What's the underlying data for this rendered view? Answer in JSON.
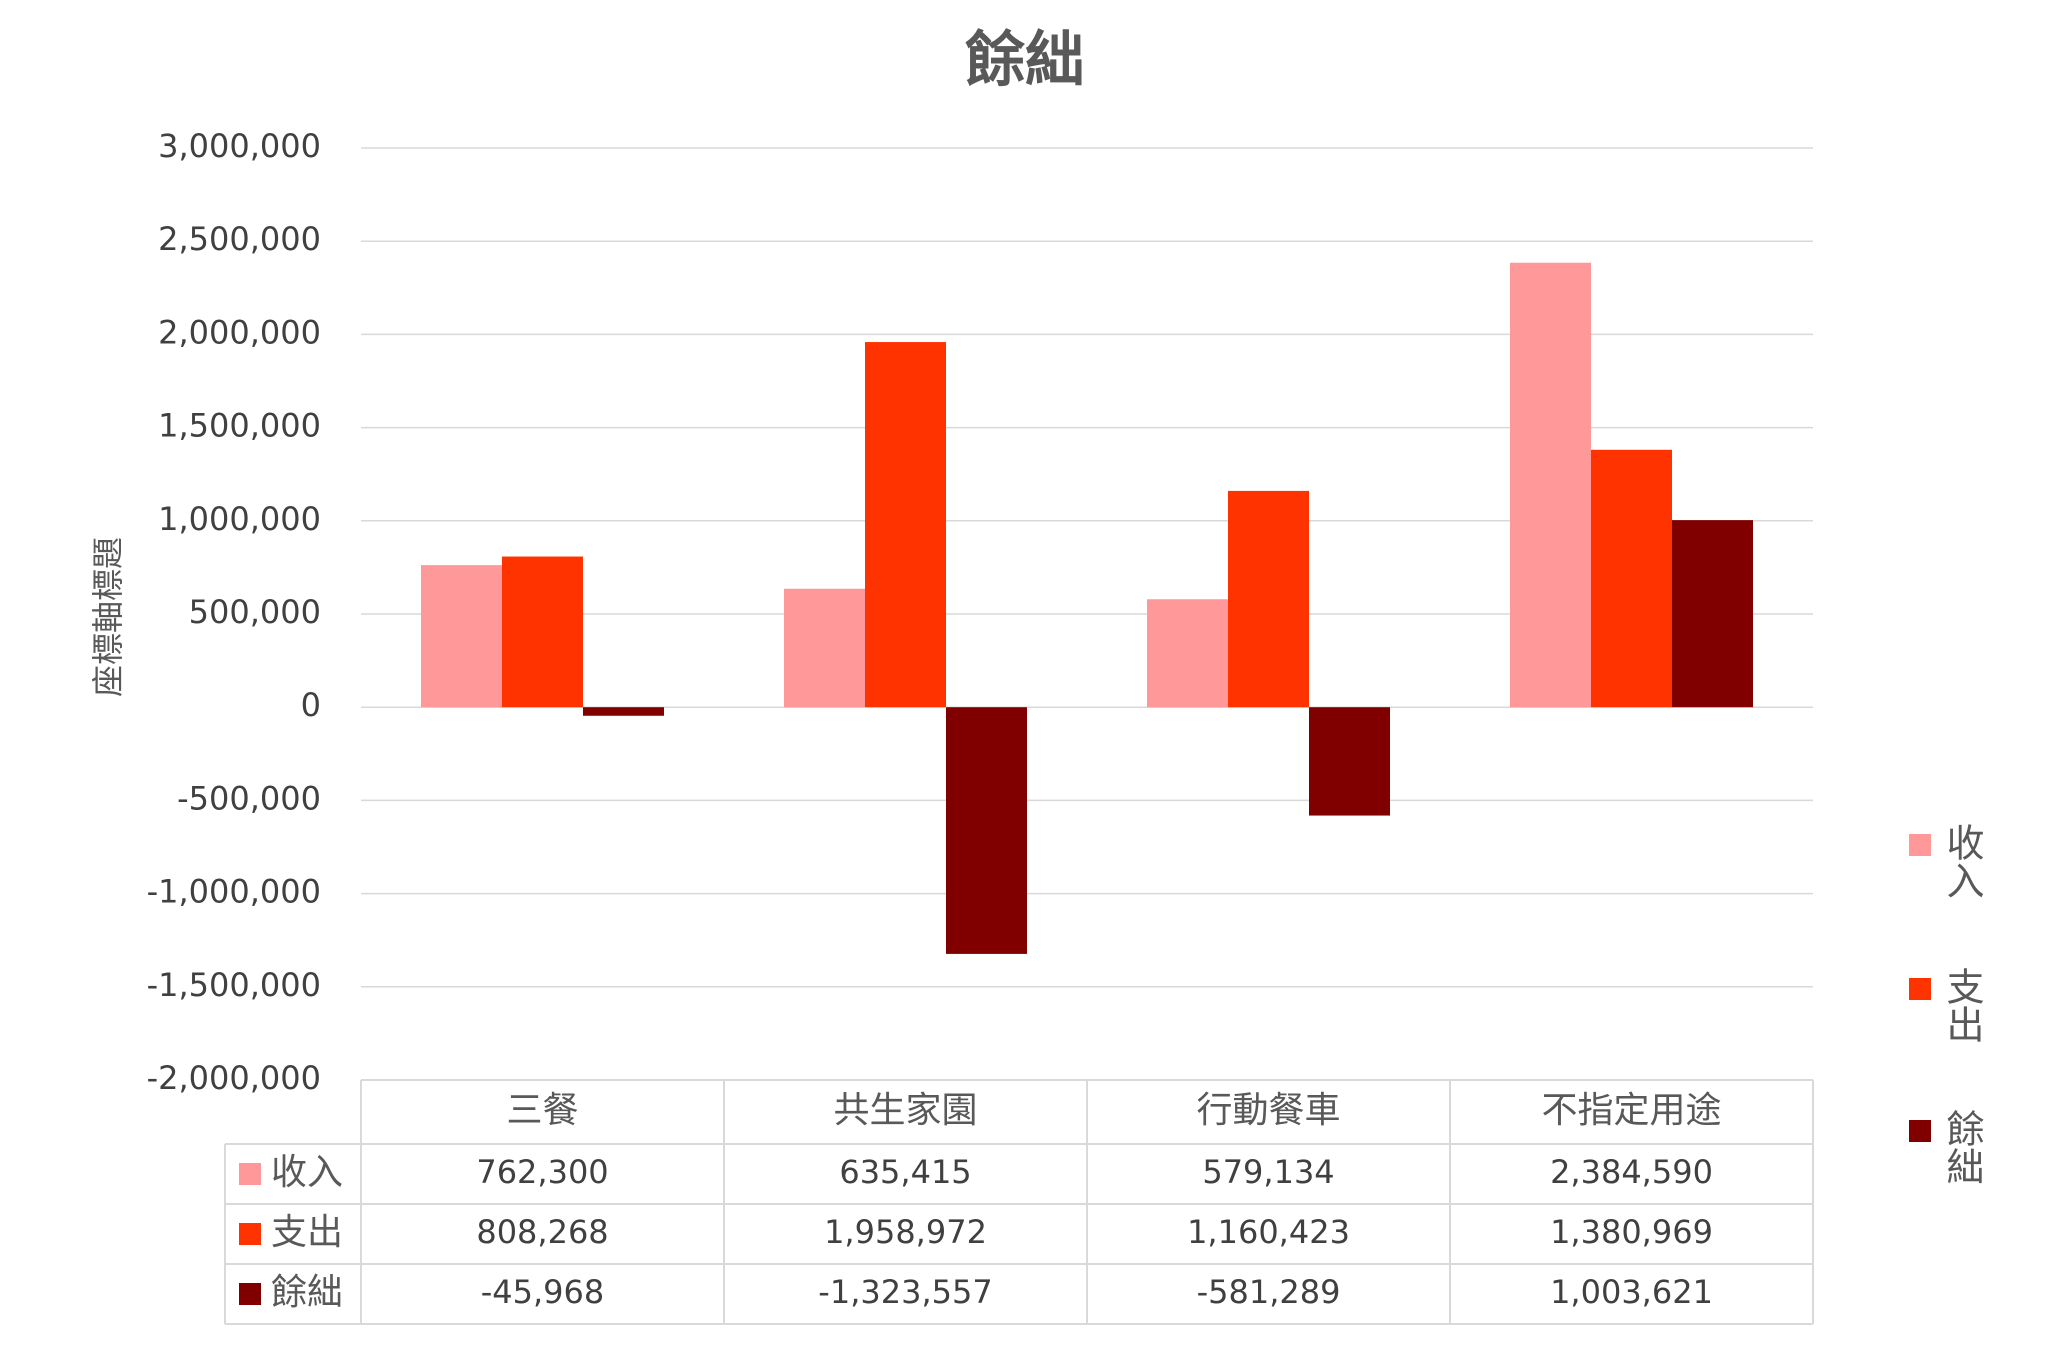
{
  "chart_data": {
    "type": "bar",
    "title": "餘絀",
    "y_label": "座標軸標題",
    "categories": [
      "三餐",
      "共生家園",
      "行動餐車",
      "不指定用途"
    ],
    "series": [
      {
        "name": "收入",
        "color": "#ff9999",
        "values": [
          762300,
          635415,
          579134,
          2384590
        ],
        "value_labels": [
          "762,300",
          "635,415",
          "579,134",
          "2,384,590"
        ]
      },
      {
        "name": "支出",
        "color": "#ff3300",
        "values": [
          808268,
          1958972,
          1160423,
          1380969
        ],
        "value_labels": [
          "808,268",
          "1,958,972",
          "1,160,423",
          "1,380,969"
        ]
      },
      {
        "name": "餘絀",
        "color": "#800000",
        "values": [
          -45968,
          -1323557,
          -581289,
          1003621
        ],
        "value_labels": [
          "-45,968",
          "-1,323,557",
          "-581,289",
          "1,003,621"
        ]
      }
    ],
    "ylim": [
      -2000000,
      3000000
    ],
    "yticks": [
      {
        "value": -2000000,
        "label": "-2,000,000"
      },
      {
        "value": -1500000,
        "label": "-1,500,000"
      },
      {
        "value": -1000000,
        "label": "-1,000,000"
      },
      {
        "value": -500000,
        "label": "-500,000"
      },
      0,
      {
        "value": 500000,
        "label": "500,000"
      },
      {
        "value": 1000000,
        "label": "1,000,000"
      },
      {
        "value": 1500000,
        "label": "1,500,000"
      },
      {
        "value": 2000000,
        "label": "2,000,000"
      },
      {
        "value": 2500000,
        "label": "2,500,000"
      },
      {
        "value": 3000000,
        "label": "3,000,000"
      }
    ],
    "grid": true,
    "legend": "right",
    "data_table": true
  }
}
